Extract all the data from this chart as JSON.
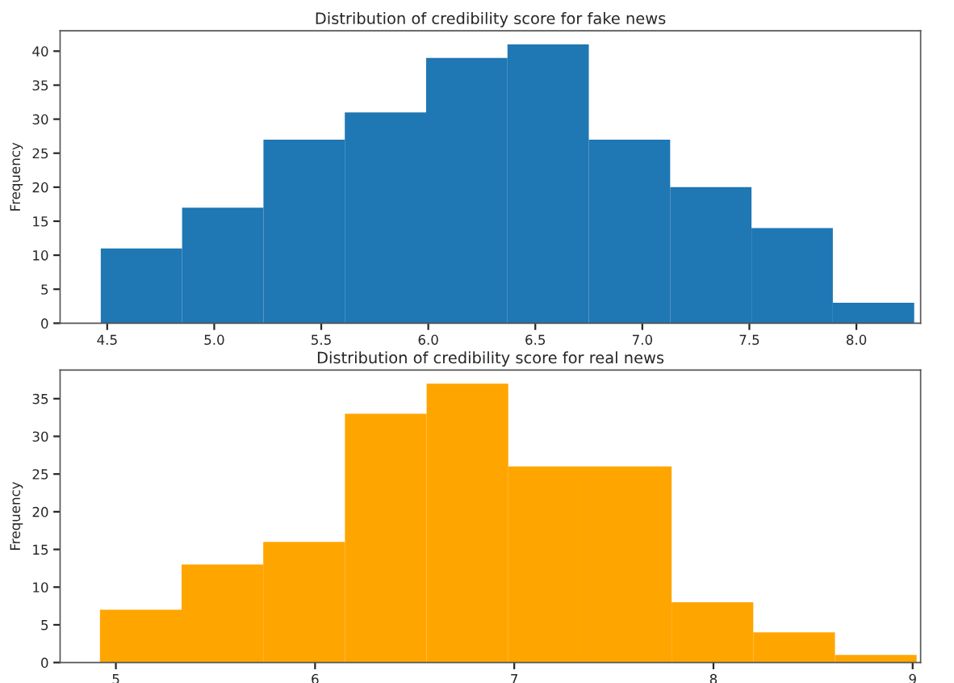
{
  "chart_data": [
    {
      "type": "histogram",
      "title": "Distribution of credibility score for fake news",
      "ylabel": "Frequency",
      "color": "#1f77b4",
      "bins": [
        4.47,
        4.85,
        5.23,
        5.61,
        5.99,
        6.37,
        6.75,
        7.13,
        7.51,
        7.89,
        8.27
      ],
      "values": [
        11,
        17,
        27,
        31,
        39,
        41,
        27,
        20,
        14,
        3
      ],
      "xlim": [
        4.28,
        8.3
      ],
      "xticks": [
        {
          "value": 4.5,
          "label": "4.5"
        },
        {
          "value": 5.0,
          "label": "5.0"
        },
        {
          "value": 5.5,
          "label": "5.5"
        },
        {
          "value": 6.0,
          "label": "6.0"
        },
        {
          "value": 6.5,
          "label": "6.5"
        },
        {
          "value": 7.0,
          "label": "7.0"
        },
        {
          "value": 7.5,
          "label": "7.5"
        },
        {
          "value": 8.0,
          "label": "8.0"
        }
      ],
      "ylim": [
        0,
        43
      ],
      "yticks": [
        0,
        5,
        10,
        15,
        20,
        25,
        30,
        35,
        40
      ],
      "grid": false,
      "legend": false
    },
    {
      "type": "histogram",
      "title": "Distribution of credibility score for real news",
      "ylabel": "Frequency",
      "color": "#ffa500",
      "bins": [
        4.92,
        5.33,
        5.74,
        6.15,
        6.56,
        6.97,
        7.38,
        7.79,
        8.2,
        8.61,
        9.02
      ],
      "values": [
        7,
        13,
        16,
        33,
        37,
        26,
        26,
        8,
        4,
        1
      ],
      "xlim": [
        4.72,
        9.04
      ],
      "xticks": [
        5,
        6,
        7,
        8,
        9
      ],
      "ylim": [
        0,
        38.8
      ],
      "yticks": [
        0,
        5,
        10,
        15,
        20,
        25,
        30,
        35
      ],
      "grid": false,
      "legend": false
    }
  ]
}
